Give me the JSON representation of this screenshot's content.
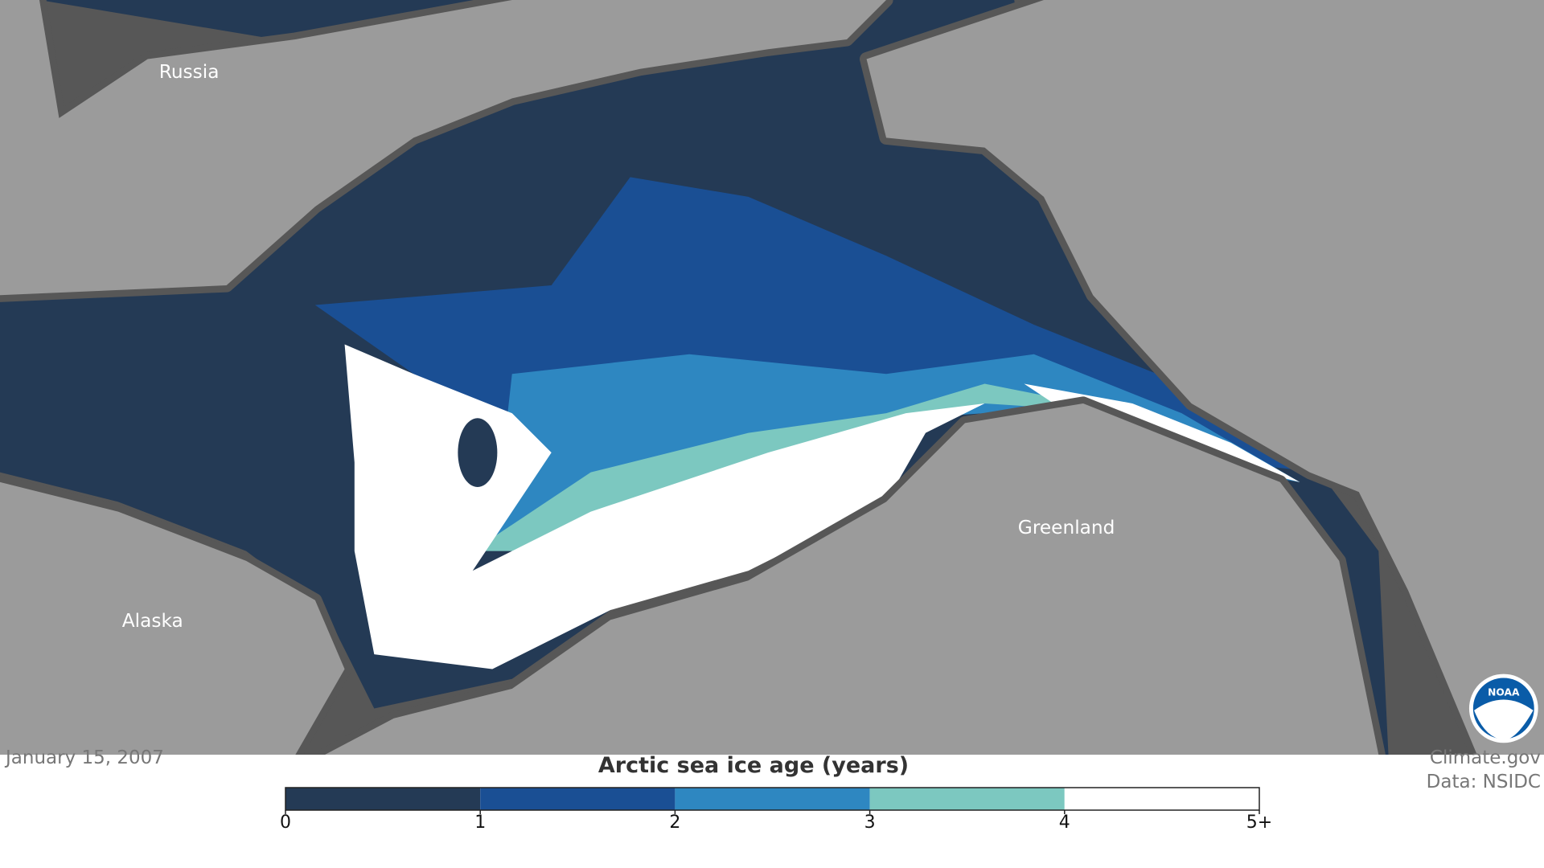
{
  "map": {
    "labels": [
      "Russia",
      "Alaska",
      "Greenland"
    ]
  },
  "date": "January 15, 2007",
  "legend": {
    "title": "Arctic sea ice age (years)",
    "colors": [
      "#243a55",
      "#1a4f94",
      "#2e87c1",
      "#7cc8c0",
      "#ffffff"
    ],
    "ticks": [
      0,
      1,
      2,
      3,
      4,
      {
        "value": 5,
        "label": "5+"
      }
    ]
  },
  "credits": [
    "Climate.gov",
    "Data: NSIDC"
  ]
}
